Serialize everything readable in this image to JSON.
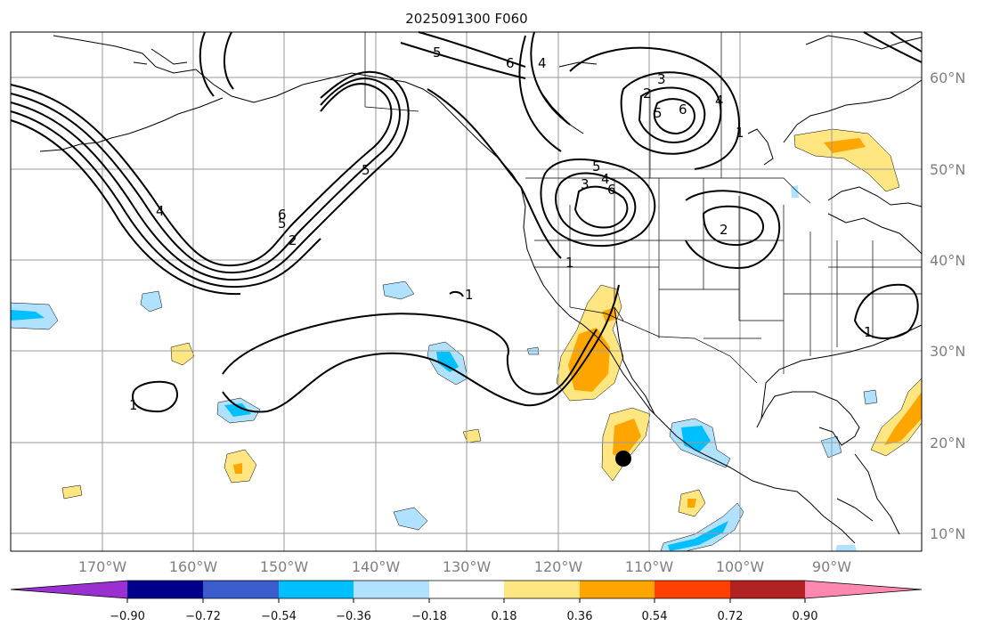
{
  "title": "2025091300 F060",
  "lon_labels": [
    "170°W",
    "160°W",
    "150°W",
    "140°W",
    "130°W",
    "120°W",
    "110°W",
    "100°W",
    "90°W"
  ],
  "lat_labels": [
    "60°N",
    "50°N",
    "40°N",
    "30°N",
    "20°N",
    "10°N"
  ],
  "colorbar": {
    "tick_labels": [
      "−0.90",
      "−0.72",
      "−0.54",
      "−0.36",
      "−0.18",
      "0.18",
      "0.36",
      "0.54",
      "0.72",
      "0.90"
    ],
    "colors": [
      "#9b30d0",
      "#00008b",
      "#3a5ccc",
      "#00bfff",
      "#b0e2ff",
      "#ffffff",
      "#ffe680",
      "#ffa500",
      "#ff4000",
      "#b22222",
      "#ff88b0"
    ]
  },
  "contour_labels": [
    "5",
    "6",
    "4",
    "3",
    "2",
    "5",
    "6",
    "4",
    "5",
    "4",
    "3",
    "6",
    "5",
    "4",
    "2",
    "1",
    "1",
    "1",
    "1",
    "1",
    "2",
    "5",
    "6"
  ],
  "marker": "storm-center-marker"
}
